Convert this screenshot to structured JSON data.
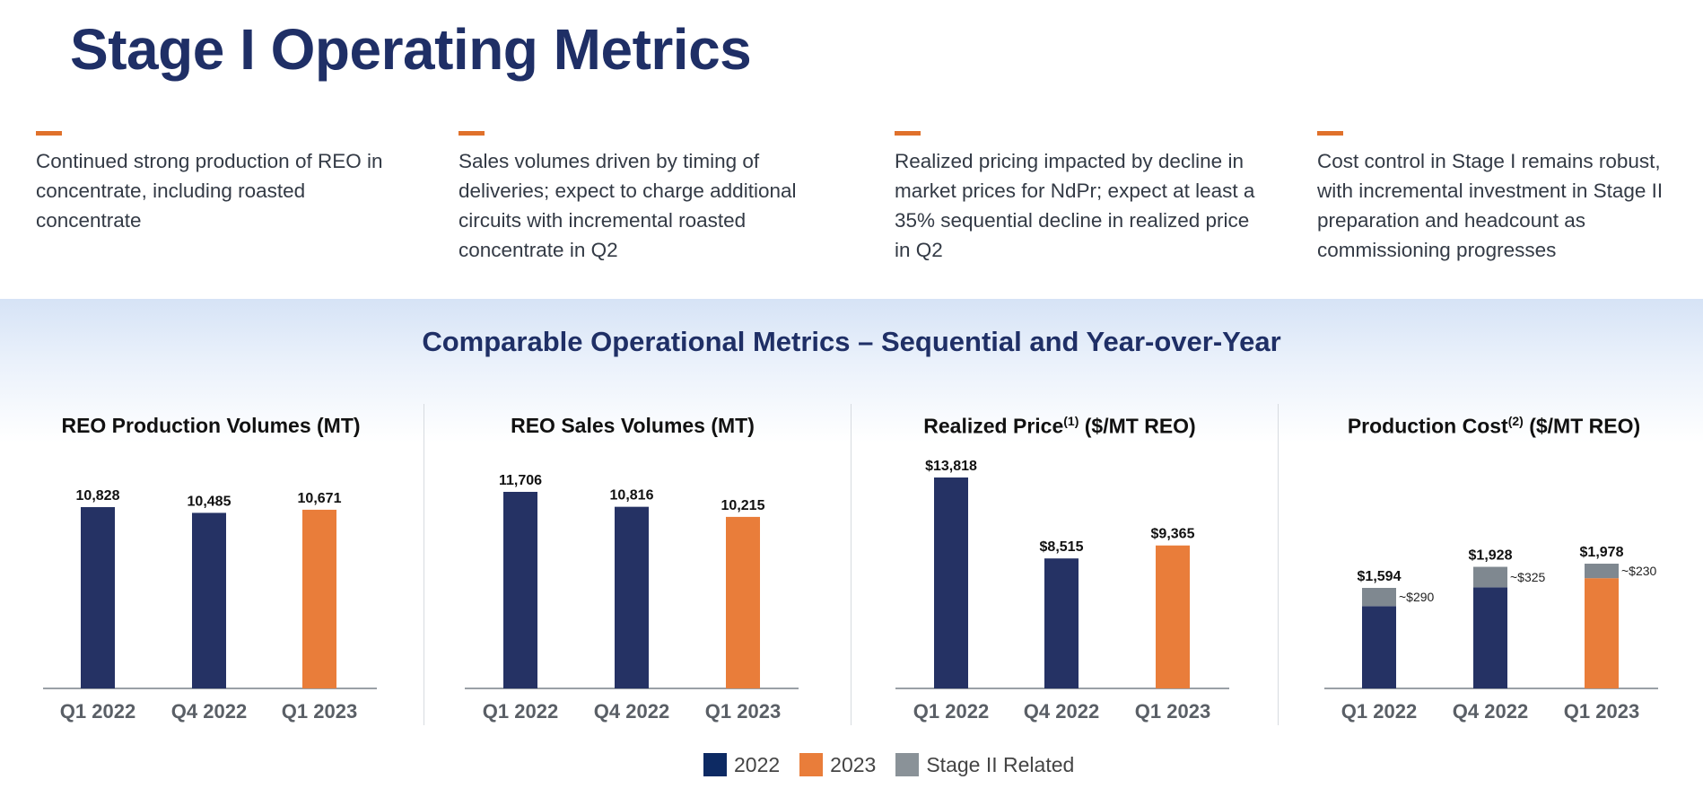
{
  "header": {
    "title": "Stage I Operating Metrics"
  },
  "bullets": [
    {
      "text": "Continued strong production of REO in concentrate, including roasted concentrate"
    },
    {
      "text": "Sales volumes driven by timing of deliveries; expect to charge additional circuits with incremental roasted concentrate in Q2"
    },
    {
      "text": "Realized pricing impacted by decline in market prices for NdPr; expect at least a 35% sequential decline in realized price in Q2"
    },
    {
      "text": "Cost control in Stage I remains robust, with incremental investment in Stage II preparation and headcount as commissioning progresses"
    }
  ],
  "section": {
    "title": "Comparable Operational Metrics – Sequential and Year-over-Year"
  },
  "colors": {
    "y2022": "#253264",
    "y2023": "#e97d3a",
    "stage2": "#7f8890",
    "title": "#1f2f66",
    "accent": "#e0712b"
  },
  "legend": [
    {
      "label": "2022",
      "color": "#0d2a63"
    },
    {
      "label": "2023",
      "color": "#e97d3a"
    },
    {
      "label": "Stage II Related",
      "color": "#8a9298"
    }
  ],
  "chart_data": [
    {
      "type": "bar",
      "title": "REO Production Volumes (MT)",
      "title_sup": "",
      "title_suffix": "",
      "categories": [
        "Q1 2022",
        "Q4 2022",
        "Q1 2023"
      ],
      "values": [
        10828,
        10485,
        10671
      ],
      "value_labels": [
        "10,828",
        "10,485",
        "10,671"
      ],
      "years": [
        "2022",
        "2022",
        "2023"
      ]
    },
    {
      "type": "bar",
      "title": "REO Sales Volumes (MT)",
      "title_sup": "",
      "title_suffix": "",
      "categories": [
        "Q1 2022",
        "Q4 2022",
        "Q1 2023"
      ],
      "values": [
        11706,
        10816,
        10215
      ],
      "value_labels": [
        "11,706",
        "10,816",
        "10,215"
      ],
      "years": [
        "2022",
        "2022",
        "2023"
      ]
    },
    {
      "type": "bar",
      "title": "Realized Price",
      "title_sup": "(1)",
      "title_suffix": " ($/MT REO)",
      "categories": [
        "Q1 2022",
        "Q4 2022",
        "Q1 2023"
      ],
      "values": [
        13818,
        8515,
        9365
      ],
      "value_labels": [
        "$13,818",
        "$8,515",
        "$9,365"
      ],
      "years": [
        "2022",
        "2022",
        "2023"
      ]
    },
    {
      "type": "bar",
      "stacked": true,
      "title": "Production Cost",
      "title_sup": "(2)",
      "title_suffix": " ($/MT REO)",
      "categories": [
        "Q1 2022",
        "Q4 2022",
        "Q1 2023"
      ],
      "values": [
        1594,
        1928,
        1978
      ],
      "value_labels": [
        "$1,594",
        "$1,928",
        "$1,978"
      ],
      "stage2_values": [
        290,
        325,
        230
      ],
      "stage2_labels": [
        "~$290",
        "~$325",
        "~$230"
      ],
      "years": [
        "2022",
        "2022",
        "2023"
      ]
    }
  ]
}
